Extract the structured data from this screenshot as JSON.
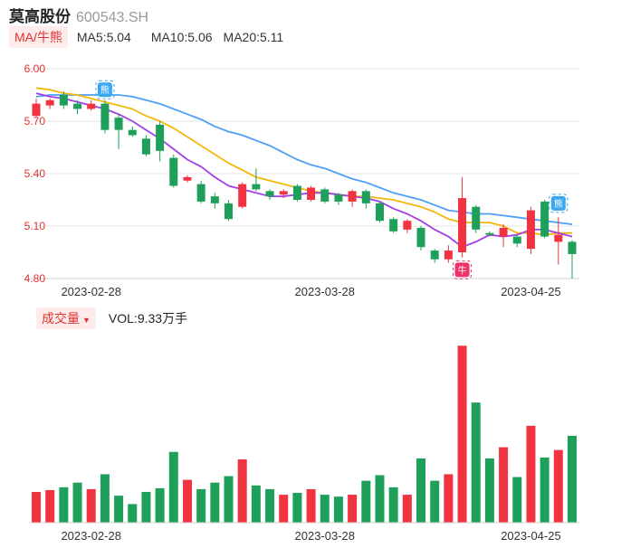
{
  "header": {
    "name": "莫高股份",
    "code": "600543.SH"
  },
  "ma": {
    "mode_label": "MA/牛熊",
    "ma5_label": "MA5:5.04",
    "ma10_label": "MA10:5.06",
    "ma20_label": "MA20:5.11"
  },
  "volume_panel": {
    "mode_label": "成交量",
    "vol_label": "VOL:9.33万手"
  },
  "colors": {
    "up": "#ef3340",
    "down": "#1fa05a",
    "ma5": "#a23fe8",
    "ma10": "#f5b70a",
    "ma20": "#4e9ff5"
  },
  "markers": {
    "bear": "熊",
    "bull": "牛"
  },
  "chart_data": [
    {
      "type": "candlestick",
      "y_ticks": [
        "6.00",
        "5.70",
        "5.40",
        "5.10",
        "4.80"
      ],
      "ylim": [
        4.8,
        6.0
      ],
      "x_tick_labels": [
        "2023-02-28",
        "2023-03-28",
        "2023-04-25"
      ],
      "x_tick_indices": [
        4,
        21,
        36
      ],
      "candles": [
        {
          "o": 5.73,
          "h": 5.83,
          "l": 5.72,
          "c": 5.8
        },
        {
          "o": 5.79,
          "h": 5.83,
          "l": 5.77,
          "c": 5.82
        },
        {
          "o": 5.85,
          "h": 5.87,
          "l": 5.77,
          "c": 5.79
        },
        {
          "o": 5.8,
          "h": 5.82,
          "l": 5.74,
          "c": 5.77
        },
        {
          "o": 5.77,
          "h": 5.82,
          "l": 5.76,
          "c": 5.8
        },
        {
          "o": 5.8,
          "h": 5.82,
          "l": 5.63,
          "c": 5.65
        },
        {
          "o": 5.72,
          "h": 5.74,
          "l": 5.54,
          "c": 5.65
        },
        {
          "o": 5.65,
          "h": 5.67,
          "l": 5.61,
          "c": 5.62
        },
        {
          "o": 5.6,
          "h": 5.62,
          "l": 5.5,
          "c": 5.51
        },
        {
          "o": 5.68,
          "h": 5.7,
          "l": 5.47,
          "c": 5.53
        },
        {
          "o": 5.49,
          "h": 5.51,
          "l": 5.32,
          "c": 5.33
        },
        {
          "o": 5.36,
          "h": 5.39,
          "l": 5.35,
          "c": 5.38
        },
        {
          "o": 5.34,
          "h": 5.36,
          "l": 5.23,
          "c": 5.24
        },
        {
          "o": 5.27,
          "h": 5.29,
          "l": 5.2,
          "c": 5.23
        },
        {
          "o": 5.23,
          "h": 5.25,
          "l": 5.13,
          "c": 5.14
        },
        {
          "o": 5.21,
          "h": 5.35,
          "l": 5.2,
          "c": 5.34
        },
        {
          "o": 5.34,
          "h": 5.43,
          "l": 5.3,
          "c": 5.31
        },
        {
          "o": 5.3,
          "h": 5.31,
          "l": 5.25,
          "c": 5.27
        },
        {
          "o": 5.28,
          "h": 5.31,
          "l": 5.26,
          "c": 5.3
        },
        {
          "o": 5.33,
          "h": 5.34,
          "l": 5.24,
          "c": 5.25
        },
        {
          "o": 5.25,
          "h": 5.33,
          "l": 5.24,
          "c": 5.32
        },
        {
          "o": 5.31,
          "h": 5.32,
          "l": 5.23,
          "c": 5.24
        },
        {
          "o": 5.28,
          "h": 5.29,
          "l": 5.22,
          "c": 5.24
        },
        {
          "o": 5.24,
          "h": 5.31,
          "l": 5.21,
          "c": 5.3
        },
        {
          "o": 5.3,
          "h": 5.31,
          "l": 5.2,
          "c": 5.23
        },
        {
          "o": 5.23,
          "h": 5.24,
          "l": 5.12,
          "c": 5.13
        },
        {
          "o": 5.14,
          "h": 5.15,
          "l": 5.06,
          "c": 5.07
        },
        {
          "o": 5.08,
          "h": 5.14,
          "l": 5.06,
          "c": 5.13
        },
        {
          "o": 5.09,
          "h": 5.1,
          "l": 4.96,
          "c": 4.98
        },
        {
          "o": 4.96,
          "h": 4.97,
          "l": 4.89,
          "c": 4.91
        },
        {
          "o": 4.91,
          "h": 4.99,
          "l": 4.89,
          "c": 4.96
        },
        {
          "o": 4.95,
          "h": 5.38,
          "l": 4.92,
          "c": 5.26
        },
        {
          "o": 5.21,
          "h": 5.22,
          "l": 5.06,
          "c": 5.08
        },
        {
          "o": 5.06,
          "h": 5.07,
          "l": 5.04,
          "c": 5.05
        },
        {
          "o": 5.04,
          "h": 5.11,
          "l": 4.98,
          "c": 5.09
        },
        {
          "o": 5.04,
          "h": 5.05,
          "l": 4.98,
          "c": 5.0
        },
        {
          "o": 4.97,
          "h": 5.21,
          "l": 4.94,
          "c": 5.19
        },
        {
          "o": 5.24,
          "h": 5.25,
          "l": 5.03,
          "c": 5.04
        },
        {
          "o": 5.01,
          "h": 5.15,
          "l": 4.88,
          "c": 5.05
        },
        {
          "o": 5.01,
          "h": 5.02,
          "l": 4.8,
          "c": 4.94
        }
      ],
      "ma5": [
        5.86,
        5.84,
        5.83,
        5.81,
        5.79,
        5.77,
        5.74,
        5.7,
        5.65,
        5.6,
        5.54,
        5.48,
        5.44,
        5.38,
        5.33,
        5.31,
        5.29,
        5.27,
        5.27,
        5.28,
        5.29,
        5.29,
        5.28,
        5.27,
        5.26,
        5.24,
        5.2,
        5.17,
        5.13,
        5.08,
        5.04,
        4.98,
        5.01,
        5.05,
        5.04,
        5.05,
        5.08,
        5.08,
        5.06,
        5.04
      ],
      "ma10": [
        5.89,
        5.88,
        5.86,
        5.85,
        5.83,
        5.81,
        5.79,
        5.77,
        5.73,
        5.7,
        5.66,
        5.61,
        5.56,
        5.51,
        5.46,
        5.42,
        5.38,
        5.36,
        5.34,
        5.32,
        5.3,
        5.29,
        5.28,
        5.27,
        5.27,
        5.26,
        5.25,
        5.23,
        5.21,
        5.18,
        5.14,
        5.12,
        5.12,
        5.12,
        5.1,
        5.06,
        5.06,
        5.05,
        5.06,
        5.06
      ],
      "ma20": [
        5.84,
        5.85,
        5.85,
        5.85,
        5.85,
        5.85,
        5.85,
        5.84,
        5.82,
        5.8,
        5.77,
        5.74,
        5.71,
        5.67,
        5.64,
        5.62,
        5.59,
        5.56,
        5.52,
        5.48,
        5.45,
        5.43,
        5.4,
        5.37,
        5.35,
        5.32,
        5.29,
        5.27,
        5.25,
        5.22,
        5.19,
        5.18,
        5.17,
        5.17,
        5.16,
        5.15,
        5.14,
        5.13,
        5.12,
        5.11
      ]
    },
    {
      "type": "bar",
      "series_name": "成交量",
      "values": [
        3.3,
        3.5,
        3.8,
        4.3,
        3.6,
        5.2,
        2.9,
        2.0,
        3.3,
        3.7,
        7.6,
        4.6,
        3.6,
        4.3,
        5.0,
        6.8,
        4.0,
        3.6,
        3.0,
        3.2,
        3.6,
        3.0,
        2.8,
        3.0,
        4.5,
        5.1,
        3.8,
        3.0,
        6.9,
        4.5,
        5.2,
        19.0,
        12.9,
        6.9,
        8.1,
        4.9,
        10.4,
        7.0,
        7.8,
        9.33
      ],
      "ylim": [
        0,
        20
      ],
      "x_tick_labels": [
        "2023-02-28",
        "2023-03-28",
        "2023-04-25"
      ],
      "x_tick_indices": [
        4,
        21,
        36
      ]
    }
  ]
}
